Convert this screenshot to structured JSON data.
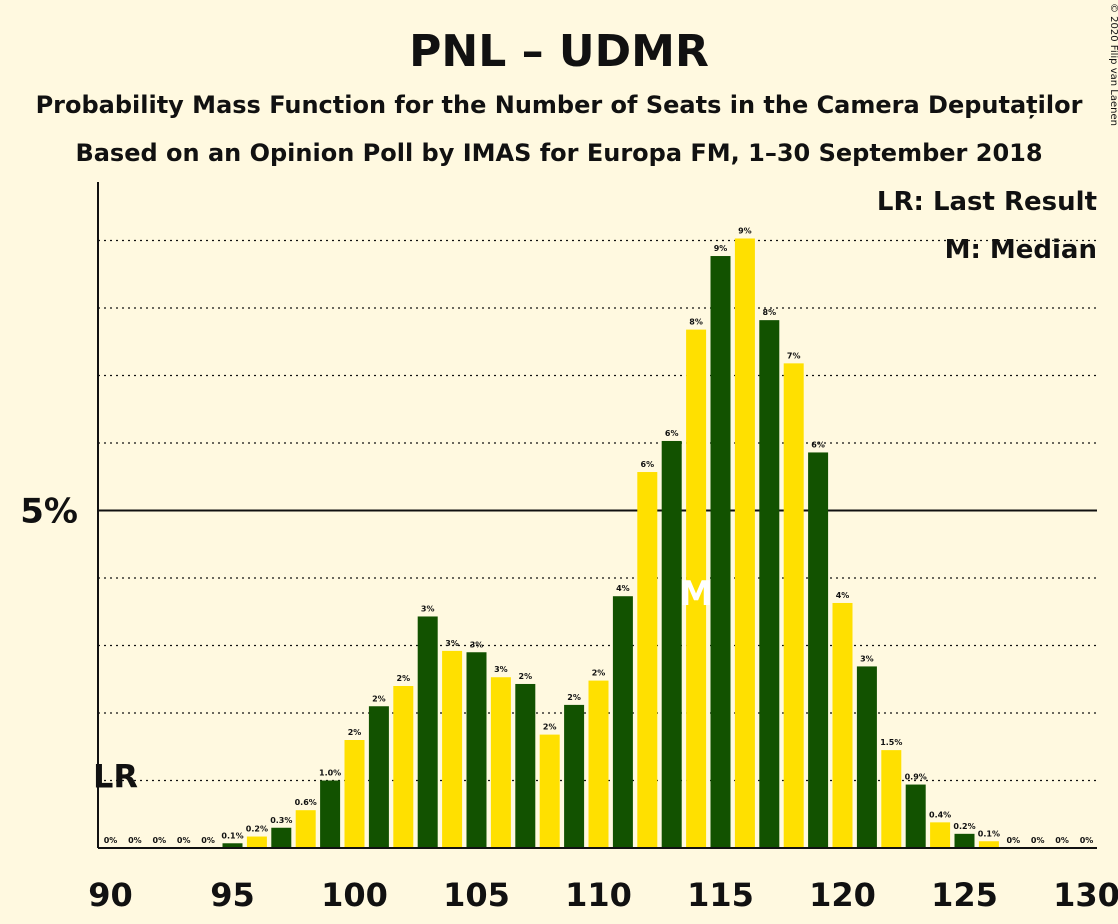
{
  "copyright": "© 2020 Filip van Laenen",
  "chart_data": {
    "type": "bar",
    "title": "PNL – UDMR",
    "subtitle_1": "Probability Mass Function for the Number of Seats in the Camera Deputaților",
    "subtitle_2": "Based on an Opinion Poll by IMAS for Europa FM, 1–30 September 2018",
    "legend": {
      "lr": "LR: Last Result",
      "m": "M: Median"
    },
    "lr_marker": "LR",
    "lr_seat": 90,
    "lr_level": 1.0,
    "median_marker": "M",
    "median_seat": 114,
    "y_tick_label": "5%",
    "y_tick_value": 5,
    "ylim": [
      0,
      9.7
    ],
    "xlim": [
      90,
      130
    ],
    "x_ticks": [
      "90",
      "95",
      "100",
      "105",
      "110",
      "115",
      "120",
      "125",
      "130"
    ],
    "colors": {
      "dark": "#125200",
      "light": "#ffe000",
      "background": "#fff9e0"
    },
    "seats": [
      90,
      91,
      92,
      93,
      94,
      95,
      96,
      97,
      98,
      99,
      100,
      101,
      102,
      103,
      104,
      105,
      106,
      107,
      108,
      109,
      110,
      111,
      112,
      113,
      114,
      115,
      116,
      117,
      118,
      119,
      120,
      121,
      122,
      123,
      124,
      125,
      126,
      127,
      128,
      129,
      130
    ],
    "values": [
      0,
      0,
      0,
      0,
      0,
      0.07,
      0.17,
      0.3,
      0.56,
      1.0,
      1.6,
      2.1,
      2.4,
      3.43,
      2.92,
      2.9,
      2.53,
      2.43,
      1.68,
      2.12,
      2.48,
      3.73,
      5.57,
      6.03,
      7.68,
      8.77,
      9.03,
      7.82,
      7.18,
      5.86,
      3.63,
      2.69,
      1.45,
      0.94,
      0.38,
      0.21,
      0.1,
      0,
      0,
      0,
      0
    ],
    "labels": [
      "0%",
      "0%",
      "0%",
      "0%",
      "0%",
      "0.1%",
      "0.2%",
      "0.3%",
      "0.6%",
      "1.0%",
      "2%",
      "2%",
      "2%",
      "3%",
      "3%",
      "3%",
      "3%",
      "2%",
      "2%",
      "2%",
      "2%",
      "4%",
      "6%",
      "6%",
      "8%",
      "9%",
      "9%",
      "8%",
      "7%",
      "6%",
      "4%",
      "3%",
      "1.5%",
      "0.9%",
      "0.4%",
      "0.2%",
      "0.1%",
      "0%",
      "0%",
      "0%",
      "0%"
    ]
  }
}
